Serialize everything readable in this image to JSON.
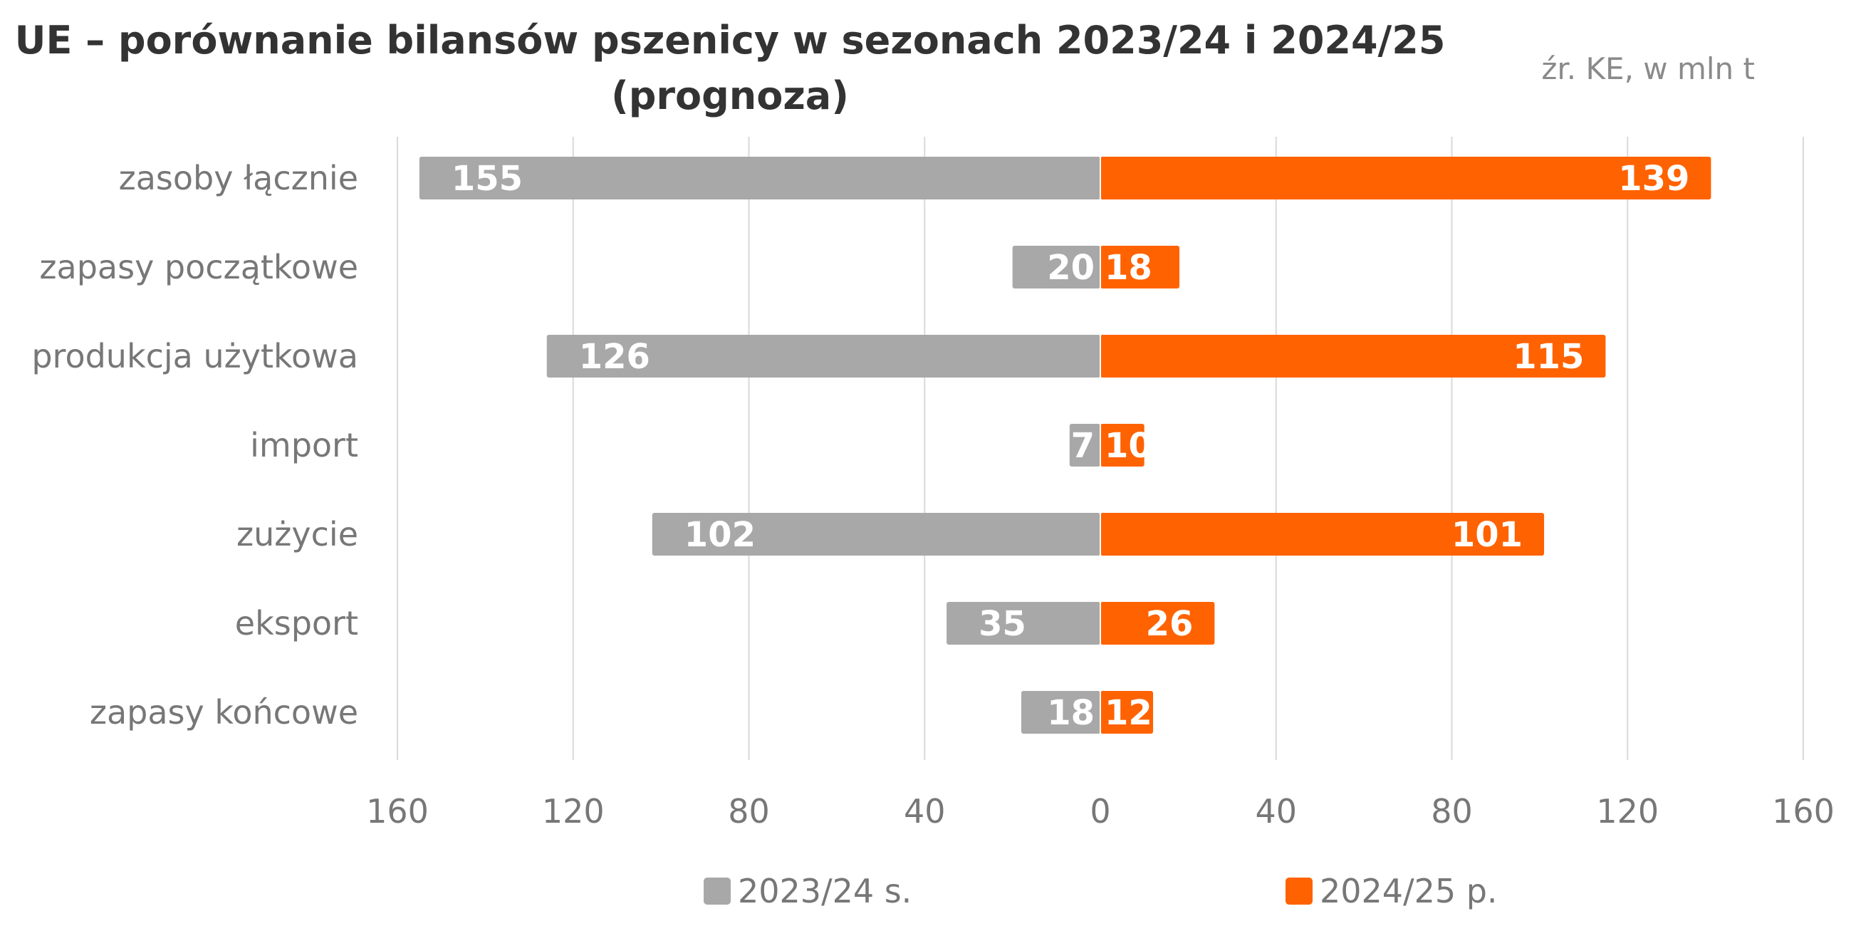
{
  "chart_data": {
    "type": "bar",
    "orientation": "horizontal-diverging",
    "title_line1": "UE – porównanie bilansów pszenicy w sezonach 2023/24 i 2024/25",
    "title_line2": "(prognoza)",
    "source_note": "źr. KE, w mln t",
    "categories": [
      "zasoby łącznie",
      "zapasy początkowe",
      "produkcja użytkowa",
      "import",
      "zużycie",
      "eksport",
      "zapasy końcowe"
    ],
    "series": [
      {
        "name": "2023/24 s.",
        "color": "#a8a8a8",
        "side": "left",
        "values": [
          155,
          20,
          126,
          7,
          102,
          35,
          18
        ]
      },
      {
        "name": "2024/25 p.",
        "color": "#ff6200",
        "side": "right",
        "values": [
          139,
          18,
          115,
          10,
          101,
          26,
          12
        ]
      }
    ],
    "xlim": [
      -160,
      160
    ],
    "xticks": [
      -160,
      -120,
      -80,
      -40,
      0,
      40,
      80,
      120,
      160
    ],
    "xtick_labels": [
      "160",
      "120",
      "80",
      "40",
      "0",
      "40",
      "80",
      "120",
      "160"
    ],
    "grid": true,
    "legend_position": "bottom"
  }
}
